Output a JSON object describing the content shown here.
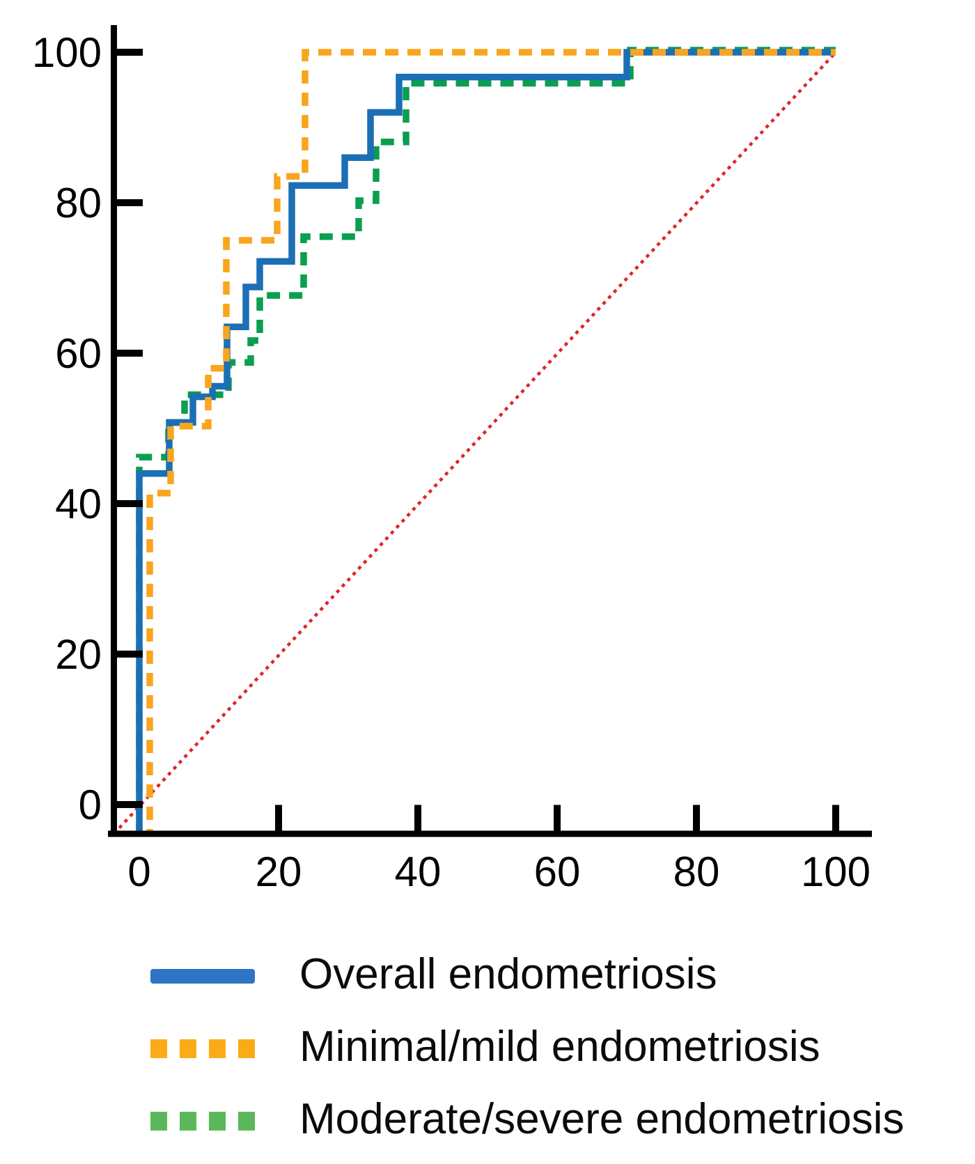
{
  "chart_data": {
    "type": "line",
    "subtype": "roc-step-curves",
    "title": "",
    "xlabel": "",
    "ylabel": "",
    "xlim": [
      0,
      100
    ],
    "ylim": [
      0,
      100
    ],
    "x_ticks": [
      0,
      20,
      40,
      60,
      80,
      100
    ],
    "y_ticks": [
      0,
      20,
      40,
      60,
      80,
      100
    ],
    "grid": false,
    "legend_position": "bottom-left",
    "axis_color": "#000000",
    "tick_label_color": "#000000",
    "series": [
      {
        "name": "Overall endometriosis",
        "color": "#1b6fb5",
        "legend_color": "#2e74c4",
        "style": "solid",
        "points": [
          [
            0,
            0
          ],
          [
            0,
            44
          ],
          [
            4.3,
            44
          ],
          [
            4.3,
            50.8
          ],
          [
            7.7,
            50.8
          ],
          [
            7.7,
            54.2
          ],
          [
            10.5,
            54.2
          ],
          [
            10.5,
            55.6
          ],
          [
            12.6,
            55.6
          ],
          [
            12.6,
            63.5
          ],
          [
            15.3,
            63.5
          ],
          [
            15.3,
            68.8
          ],
          [
            17.3,
            68.8
          ],
          [
            17.3,
            72.2
          ],
          [
            21.9,
            72.2
          ],
          [
            21.9,
            82.3
          ],
          [
            29.5,
            82.3
          ],
          [
            29.5,
            86
          ],
          [
            33.2,
            86
          ],
          [
            33.2,
            92
          ],
          [
            37.3,
            92
          ],
          [
            37.3,
            96.7
          ],
          [
            70,
            96.7
          ],
          [
            70,
            100
          ],
          [
            100,
            100
          ]
        ]
      },
      {
        "name": "Minimal/mild endometriosis",
        "color": "#f9a51e",
        "legend_color": "#fbab18",
        "style": "dashed",
        "points": [
          [
            1.5,
            0
          ],
          [
            1.5,
            41.4
          ],
          [
            4.5,
            41.4
          ],
          [
            4.5,
            50.3
          ],
          [
            9.9,
            50.3
          ],
          [
            9.9,
            58
          ],
          [
            12.5,
            58
          ],
          [
            12.5,
            75
          ],
          [
            19.8,
            75
          ],
          [
            19.8,
            83.5
          ],
          [
            23.8,
            83.5
          ],
          [
            23.8,
            100
          ],
          [
            100,
            100
          ]
        ]
      },
      {
        "name": "Moderate/severe endometriosis",
        "color": "#0a9f4e",
        "legend_color": "#5cb75a",
        "style": "dashed",
        "points": [
          [
            0,
            0
          ],
          [
            0,
            45.9
          ],
          [
            4.2,
            45.9
          ],
          [
            4.2,
            50.5
          ],
          [
            6.5,
            50.5
          ],
          [
            6.5,
            54.2
          ],
          [
            12.8,
            54.2
          ],
          [
            12.8,
            58.5
          ],
          [
            16,
            58.5
          ],
          [
            16,
            61.4
          ],
          [
            17.3,
            61.4
          ],
          [
            17.3,
            67.4
          ],
          [
            23.6,
            67.4
          ],
          [
            23.6,
            75.2
          ],
          [
            31.5,
            75.2
          ],
          [
            31.5,
            80
          ],
          [
            34,
            80
          ],
          [
            34,
            87.8
          ],
          [
            38.3,
            87.8
          ],
          [
            38.3,
            95.6
          ],
          [
            70.5,
            95.6
          ],
          [
            70.5,
            100
          ],
          [
            100,
            100
          ]
        ]
      }
    ],
    "reference_line": {
      "name": "chance-diagonal",
      "color": "#e1242a",
      "style": "dotted",
      "from": [
        0,
        0
      ],
      "to": [
        100,
        100
      ]
    }
  }
}
